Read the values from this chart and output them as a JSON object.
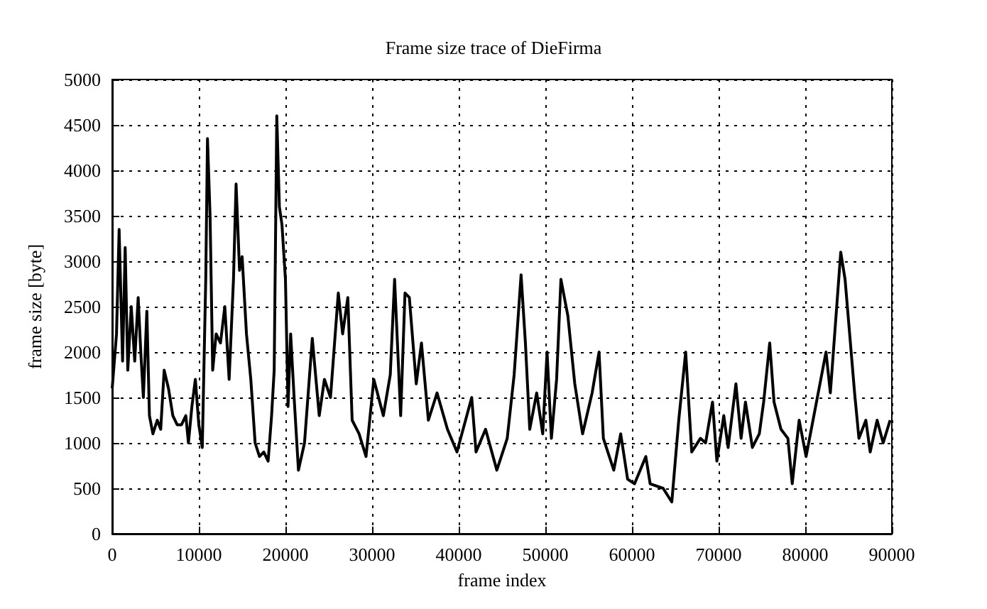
{
  "chart_data": {
    "type": "line",
    "title": "Frame size trace of DieFirma",
    "xlabel": "frame index",
    "ylabel": "frame size [byte]",
    "xlim": [
      0,
      90000
    ],
    "xticks": [
      0,
      10000,
      20000,
      30000,
      40000,
      50000,
      60000,
      70000,
      80000,
      90000
    ],
    "ylim": [
      0,
      5000
    ],
    "yticks": [
      0,
      500,
      1000,
      1500,
      2000,
      2500,
      3000,
      3500,
      4000,
      4500,
      5000
    ],
    "grid": true,
    "marker": "none",
    "line_style": "solid",
    "series": [
      {
        "color": "#000000",
        "x": [
          0,
          500,
          800,
          1200,
          1500,
          1800,
          2200,
          2600,
          3000,
          3300,
          3600,
          4000,
          4300,
          4700,
          5200,
          5600,
          6000,
          6500,
          7000,
          7500,
          8000,
          8500,
          8800,
          9200,
          9600,
          10000,
          10400,
          10800,
          11000,
          11300,
          11600,
          12000,
          12500,
          13000,
          13500,
          14000,
          14300,
          14700,
          15000,
          15500,
          16000,
          16500,
          17000,
          17500,
          18000,
          18400,
          18700,
          19000,
          19300,
          19600,
          20000,
          20300,
          20600,
          21000,
          21500,
          22200,
          23100,
          23900,
          24500,
          25200,
          26100,
          26600,
          27200,
          27700,
          28500,
          29300,
          30200,
          31300,
          32100,
          32600,
          33300,
          33800,
          34300,
          35100,
          35700,
          36500,
          37500,
          38700,
          39800,
          41500,
          42000,
          43100,
          44400,
          45600,
          46400,
          47200,
          47700,
          48200,
          49000,
          49700,
          50200,
          50700,
          51300,
          51800,
          52600,
          53400,
          54300,
          55400,
          56200,
          56700,
          57900,
          58700,
          59500,
          60300,
          61600,
          62100,
          63600,
          64600,
          65400,
          66200,
          66900,
          67900,
          68500,
          69300,
          69800,
          70600,
          71100,
          72000,
          72600,
          73100,
          73900,
          74700,
          75200,
          75900,
          76400,
          77200,
          78000,
          78500,
          79300,
          80100,
          81000,
          81800,
          82400,
          82900,
          84100,
          84600,
          85700,
          86200,
          87000,
          87500,
          88300,
          89000,
          89800
        ],
        "values": [
          1600,
          2200,
          3350,
          1900,
          3150,
          1800,
          2500,
          1900,
          2600,
          2000,
          1500,
          2450,
          1300,
          1100,
          1250,
          1150,
          1800,
          1600,
          1300,
          1200,
          1200,
          1300,
          1000,
          1400,
          1700,
          1200,
          950,
          2800,
          4350,
          3500,
          1800,
          2200,
          2100,
          2500,
          1700,
          2800,
          3850,
          2900,
          3050,
          2200,
          1700,
          1000,
          850,
          900,
          800,
          1300,
          1800,
          4600,
          3600,
          3400,
          2800,
          1400,
          2200,
          1500,
          700,
          1000,
          2150,
          1300,
          1700,
          1500,
          2650,
          2200,
          2600,
          1250,
          1100,
          850,
          1700,
          1300,
          1750,
          2800,
          1300,
          2650,
          2600,
          1650,
          2100,
          1250,
          1550,
          1150,
          900,
          1500,
          900,
          1150,
          700,
          1050,
          1750,
          2850,
          2100,
          1150,
          1550,
          1100,
          2000,
          1050,
          1700,
          2800,
          2400,
          1650,
          1100,
          1550,
          2000,
          1050,
          700,
          1100,
          600,
          550,
          850,
          550,
          500,
          350,
          1250,
          2000,
          900,
          1050,
          1000,
          1450,
          800,
          1300,
          950,
          1650,
          1050,
          1450,
          950,
          1100,
          1450,
          2100,
          1450,
          1150,
          1050,
          550,
          1250,
          850,
          1300,
          1700,
          2000,
          1550,
          3100,
          2800,
          1550,
          1050,
          1250,
          900,
          1250,
          1000,
          1250
        ]
      }
    ]
  }
}
